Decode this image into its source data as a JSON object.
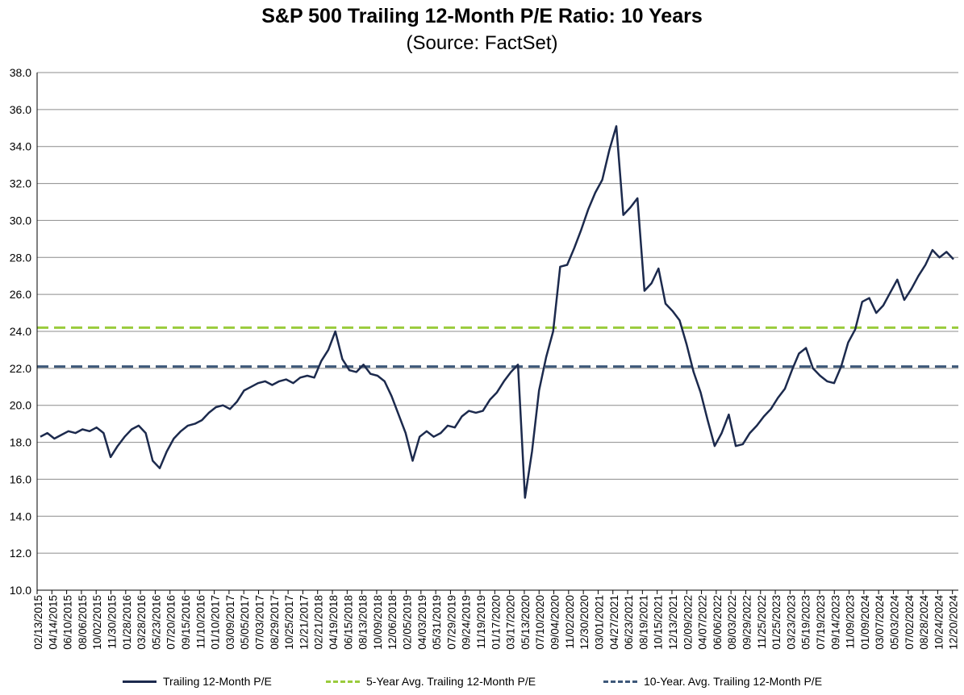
{
  "chart_data": {
    "type": "line",
    "title": "S&P 500 Trailing 12-Month P/E Ratio: 10 Years",
    "subtitle": "(Source: FactSet)",
    "ylim": [
      10.0,
      38.0
    ],
    "y_ticks": [
      "10.0",
      "12.0",
      "14.0",
      "16.0",
      "18.0",
      "20.0",
      "22.0",
      "24.0",
      "26.0",
      "28.0",
      "30.0",
      "32.0",
      "34.0",
      "36.0",
      "38.0"
    ],
    "x_ticks": [
      "02/13/2015",
      "04/14/2015",
      "06/10/2015",
      "08/06/2015",
      "10/02/2015",
      "11/30/2015",
      "01/28/2016",
      "03/28/2016",
      "05/23/2016",
      "07/20/2016",
      "09/15/2016",
      "11/10/2016",
      "01/10/2017",
      "03/09/2017",
      "05/05/2017",
      "07/03/2017",
      "08/29/2017",
      "10/25/2017",
      "12/21/2017",
      "02/21/2018",
      "04/19/2018",
      "06/15/2018",
      "08/13/2018",
      "10/09/2018",
      "12/06/2018",
      "02/05/2019",
      "04/03/2019",
      "05/31/2019",
      "07/29/2019",
      "09/24/2019",
      "11/19/2019",
      "01/17/2020",
      "03/17/2020",
      "05/13/2020",
      "07/10/2020",
      "09/04/2020",
      "11/02/2020",
      "12/30/2020",
      "03/01/2021",
      "04/27/2021",
      "06/23/2021",
      "08/19/2021",
      "10/15/2021",
      "12/13/2021",
      "02/09/2022",
      "04/07/2022",
      "06/06/2022",
      "08/03/2022",
      "09/29/2022",
      "11/25/2022",
      "01/25/2023",
      "03/23/2023",
      "05/19/2023",
      "07/19/2023",
      "09/14/2023",
      "11/09/2023",
      "01/09/2024",
      "03/07/2024",
      "05/03/2024",
      "07/02/2024",
      "08/28/2024",
      "10/24/2024",
      "12/20/2024"
    ],
    "series": [
      {
        "name": "Trailing 12-Month P/E",
        "color": "#1c2a4d",
        "style": "solid",
        "values": [
          18.3,
          18.5,
          18.2,
          18.4,
          18.6,
          18.5,
          18.7,
          18.6,
          18.8,
          18.5,
          17.2,
          17.8,
          18.3,
          18.7,
          18.9,
          18.5,
          17.0,
          16.6,
          17.5,
          18.2,
          18.6,
          18.9,
          19.0,
          19.2,
          19.6,
          19.9,
          20.0,
          19.8,
          20.2,
          20.8,
          21.0,
          21.2,
          21.3,
          21.1,
          21.3,
          21.4,
          21.2,
          21.5,
          21.6,
          21.5,
          22.4,
          23.0,
          24.0,
          22.5,
          21.9,
          21.8,
          22.2,
          21.7,
          21.6,
          21.3,
          20.5,
          19.5,
          18.5,
          17.0,
          18.3,
          18.6,
          18.3,
          18.5,
          18.9,
          18.8,
          19.4,
          19.7,
          19.6,
          19.7,
          20.3,
          20.7,
          21.3,
          21.8,
          22.2,
          15.0,
          17.5,
          20.8,
          22.6,
          24.0,
          27.5,
          27.6,
          28.5,
          29.5,
          30.6,
          31.5,
          32.2,
          33.8,
          35.1,
          30.3,
          30.7,
          31.2,
          26.2,
          26.6,
          27.4,
          25.5,
          25.1,
          24.6,
          23.3,
          21.8,
          20.7,
          19.2,
          17.8,
          18.5,
          19.5,
          17.8,
          17.9,
          18.5,
          18.9,
          19.4,
          19.8,
          20.4,
          20.9,
          21.9,
          22.8,
          23.1,
          22.0,
          21.6,
          21.3,
          21.2,
          22.1,
          23.4,
          24.1,
          25.6,
          25.8,
          25.0,
          25.4,
          26.1,
          26.8,
          25.7,
          26.3,
          27.0,
          27.6,
          28.4,
          28.0,
          28.3,
          27.9
        ]
      },
      {
        "name": "5-Year Avg. Trailing 12-Month P/E",
        "color": "#9acb3c",
        "style": "dashed",
        "value": 24.2
      },
      {
        "name": "10-Year. Avg. Trailing 12-Month P/E",
        "color": "#3d5879",
        "style": "dashed",
        "value": 22.1
      }
    ],
    "legend": [
      {
        "label": "Trailing 12-Month P/E",
        "color": "#1c2a4d",
        "style": "solid"
      },
      {
        "label": "5-Year Avg. Trailing 12-Month P/E",
        "color": "#9acb3c",
        "style": "dashed"
      },
      {
        "label": "10-Year. Avg. Trailing 12-Month P/E",
        "color": "#3d5879",
        "style": "dashed"
      }
    ],
    "grid": true,
    "legend_position": "bottom"
  }
}
